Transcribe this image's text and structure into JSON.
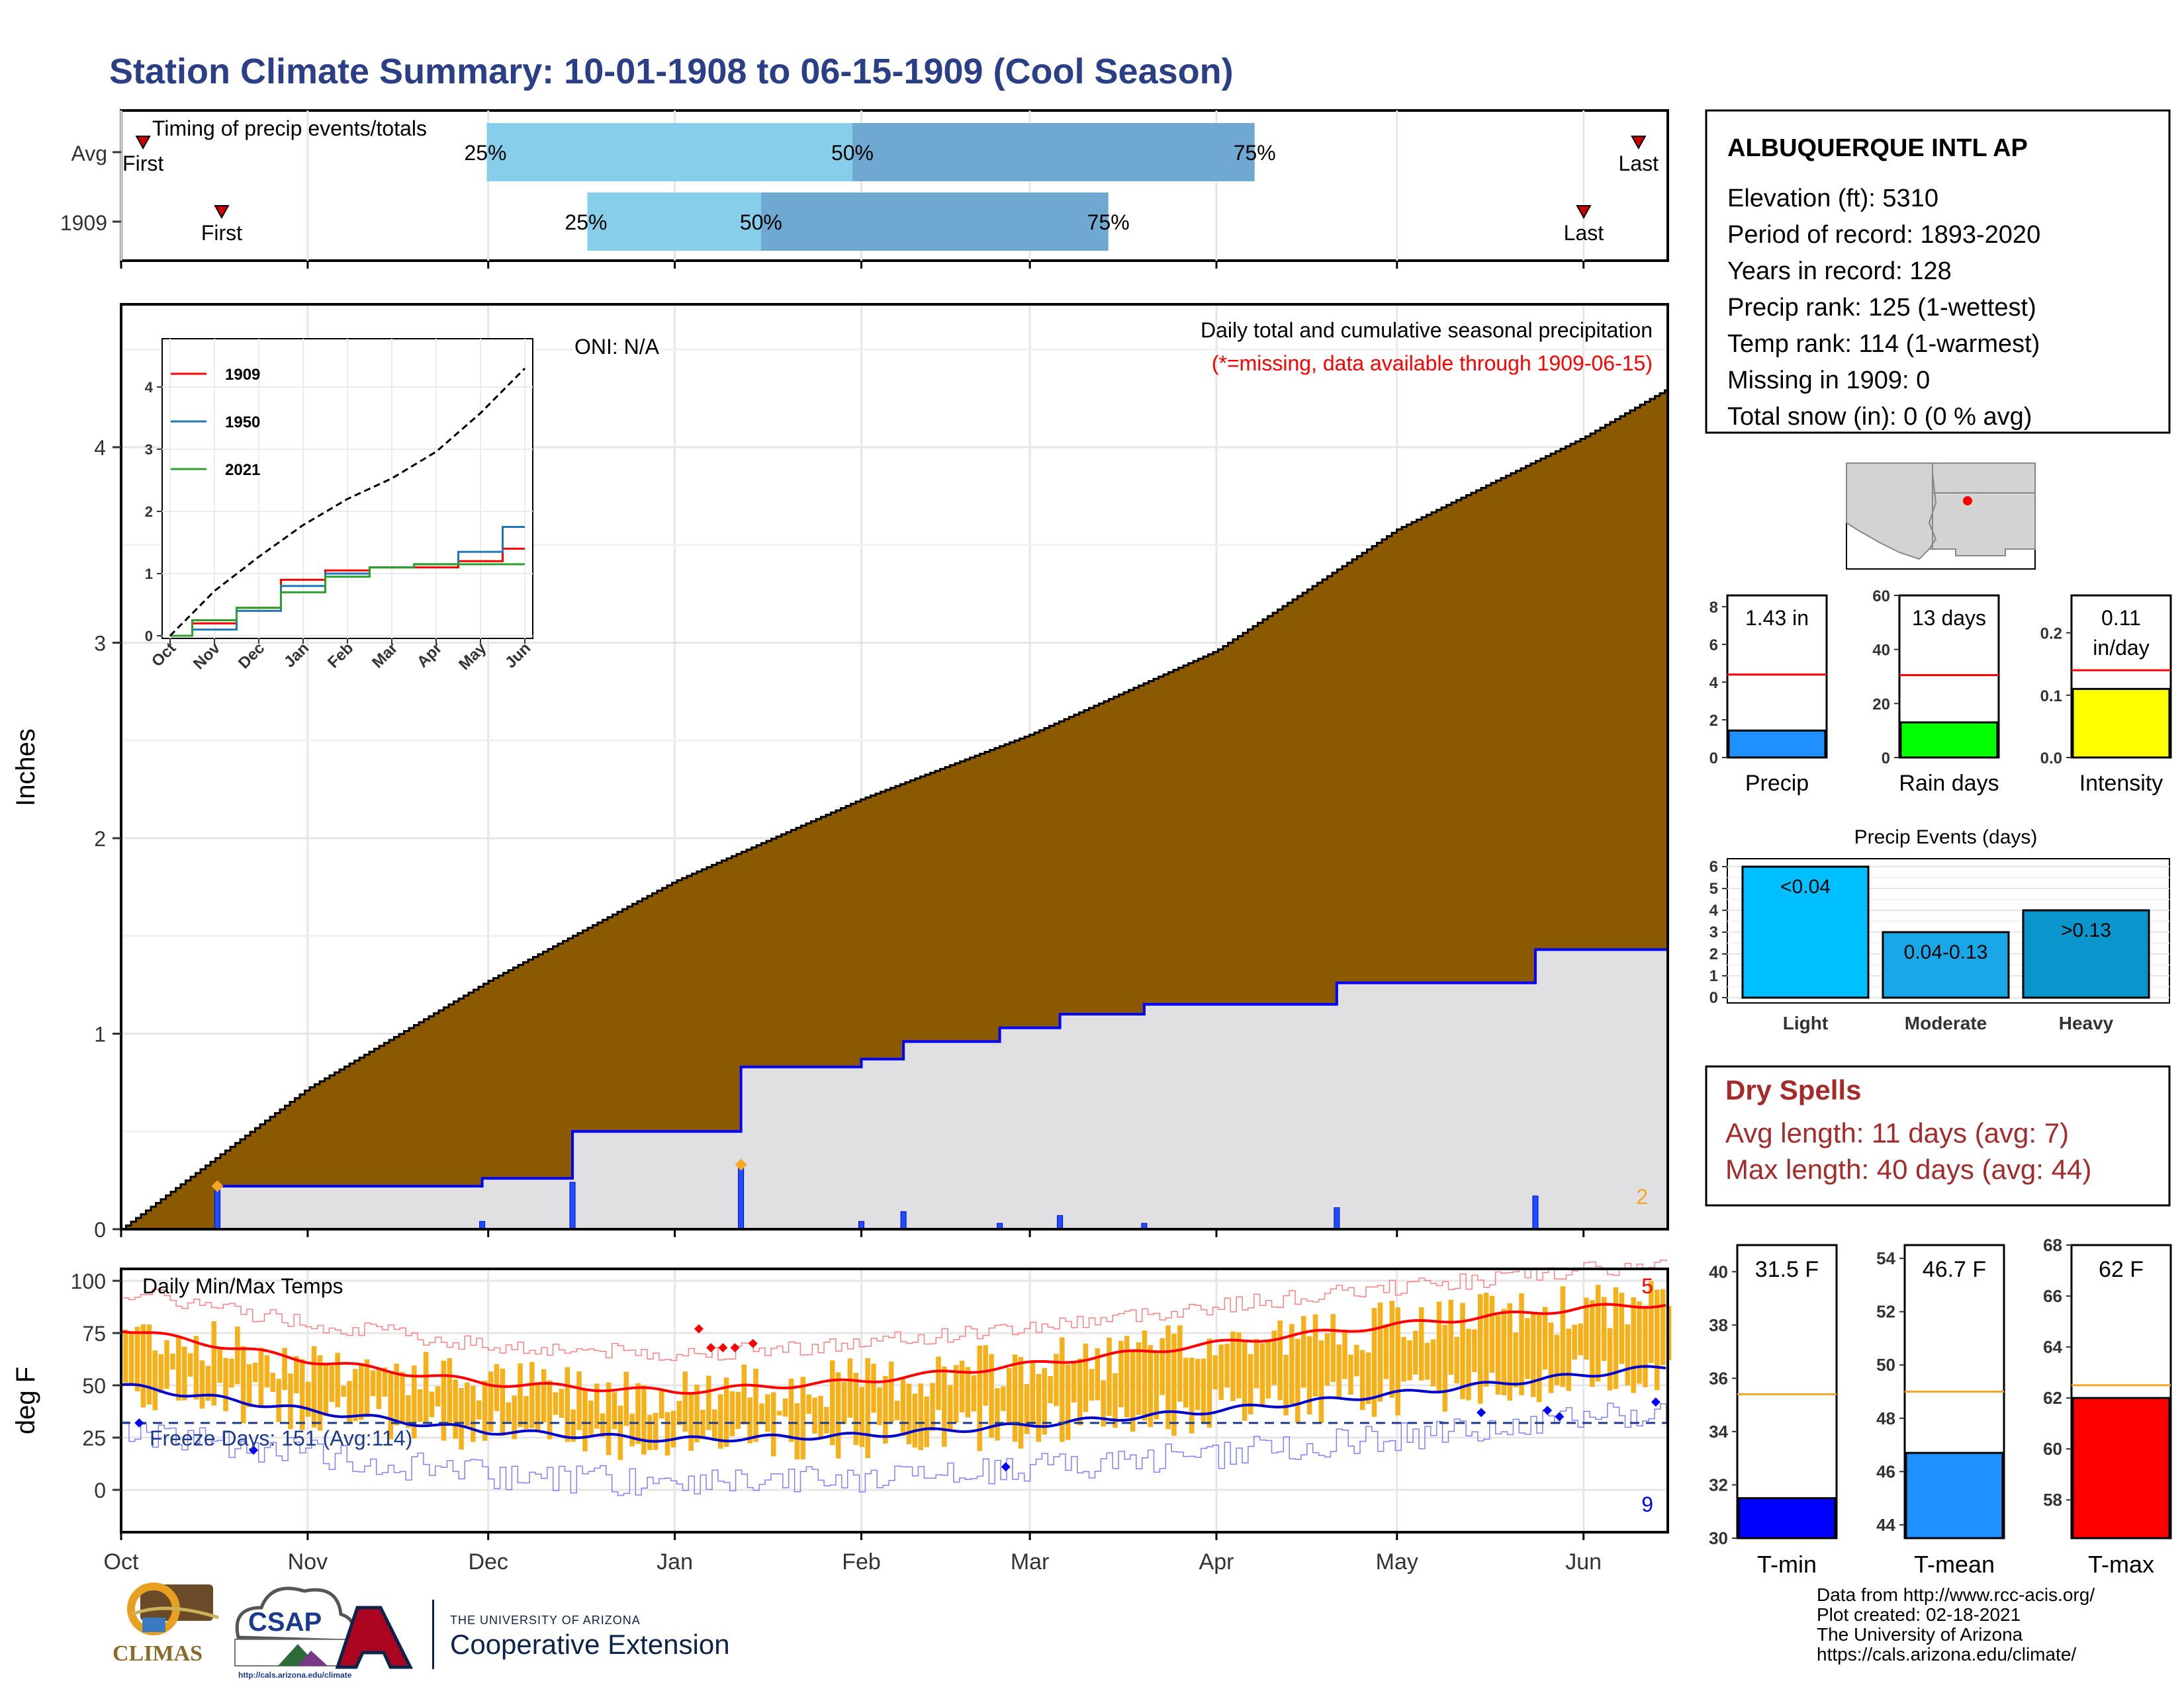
{
  "title": "Station Climate Summary: 10-01-1908 to 06-15-1909 (Cool Season)",
  "colors": {
    "title": "#2b3f87",
    "precip_fill": "#8b5a00",
    "obs_fill": "#e0e0e2",
    "obs_line": "#0000ff",
    "bar_light": "#87ceeb",
    "bar_dark": "#6fa8d0",
    "temp_bar": "#f5b01a",
    "tmax_line": "#ff0000",
    "tmin_line": "#0000ff",
    "dry_spells": "#a52a2a",
    "avg_line": "#ff0000",
    "temp_avg_line": "#f5a623"
  },
  "timing": {
    "label": "Timing of precip events/totals",
    "rows": [
      {
        "label": "Avg",
        "first_label": "First",
        "last_label": "Last",
        "first": 0.12,
        "last": 8.3,
        "p25": 2.0,
        "p50": 4.0,
        "p75": 6.2,
        "p25_label": "25%",
        "p50_label": "50%",
        "p75_label": "75%"
      },
      {
        "label": "1909",
        "first_label": "First",
        "last_label": "Last",
        "first": 0.55,
        "last": 8.0,
        "p25": 2.55,
        "p50": 3.5,
        "p75": 5.4,
        "p25_label": "25%",
        "p50_label": "50%",
        "p75_label": "75%"
      }
    ]
  },
  "precip_panel": {
    "oni": "ONI: N/A",
    "caption": "Daily total and cumulative seasonal precipitation",
    "missing_note": "(*=missing, data available through 1909-06-15)",
    "ylabel": "Inches",
    "yticks": [
      "0",
      "1",
      "2",
      "3",
      "4"
    ],
    "corner_count": "2"
  },
  "inset": {
    "legend": [
      "1909",
      "1950",
      "2021"
    ],
    "yticks": [
      "0",
      "1",
      "2",
      "3",
      "4"
    ],
    "xticks": [
      "Oct",
      "Nov",
      "Dec",
      "Jan",
      "Feb",
      "Mar",
      "Apr",
      "May",
      "Jun"
    ]
  },
  "temp_panel": {
    "label": "Daily Min/Max Temps",
    "freeze": "Freeze Days: 151 (Avg:114)",
    "ylabel": "deg F",
    "yticks": [
      "0",
      "25",
      "50",
      "75",
      "100"
    ],
    "count_top": "5",
    "count_bottom": "9"
  },
  "months": [
    "Oct",
    "Nov",
    "Dec",
    "Jan",
    "Feb",
    "Mar",
    "Apr",
    "May",
    "Jun"
  ],
  "station": {
    "name": "ALBUQUERQUE INTL AP",
    "lines": [
      "Elevation (ft): 5310",
      "Period of record: 1893-2020",
      "Years in record: 128",
      "Precip rank: 125 (1-wettest)",
      "Temp rank: 114 (1-warmest)",
      "Missing in 1909: 0",
      "Total snow (in): 0 (0 % avg)"
    ]
  },
  "mini_bars": [
    {
      "label": "Precip",
      "value_text": "1.43 in",
      "value": 1.43,
      "avg": 4.4,
      "ylim": [
        0,
        8.6
      ],
      "yticks": [
        "0",
        "2",
        "4",
        "6",
        "8"
      ],
      "color": "#1e90ff"
    },
    {
      "label": "Rain days",
      "value_text": "13 days",
      "value": 13,
      "avg": 30.5,
      "ylim": [
        0,
        60
      ],
      "yticks": [
        "0",
        "20",
        "40",
        "60"
      ],
      "color": "#00ff00"
    },
    {
      "label": "Intensity",
      "value_text": "0.11",
      "value_text2": "in/day",
      "value": 0.11,
      "avg": 0.14,
      "ylim": [
        0,
        0.26
      ],
      "yticks": [
        "0.0",
        "0.1",
        "0.2"
      ],
      "color": "#ffff00"
    }
  ],
  "events": {
    "title": "Precip Events (days)",
    "categories": [
      "Light",
      "Moderate",
      "Heavy"
    ],
    "labels": [
      "<0.04",
      "0.04-0.13",
      ">0.13"
    ],
    "values": [
      6,
      3,
      4
    ],
    "yticks": [
      "0",
      "1",
      "2",
      "3",
      "4",
      "5",
      "6"
    ],
    "colors": [
      "#00bfff",
      "#1aa7e8",
      "#0a96cc"
    ]
  },
  "dry_spells": {
    "title": "Dry Spells",
    "avg": "Avg length: 11 days (avg: 7)",
    "max": "Max length: 40 days (avg: 44)"
  },
  "temp_bars": [
    {
      "label": "T-min",
      "value_text": "31.5 F",
      "value": 31.5,
      "avg": 35.4,
      "ylim": [
        30,
        41
      ],
      "yticks": [
        "30",
        "32",
        "34",
        "36",
        "38",
        "40"
      ],
      "color": "#0000ff"
    },
    {
      "label": "T-mean",
      "value_text": "46.7 F",
      "value": 46.7,
      "avg": 49,
      "ylim": [
        43.5,
        54.5
      ],
      "yticks": [
        "44",
        "46",
        "48",
        "50",
        "52",
        "54"
      ],
      "color": "#1e90ff"
    },
    {
      "label": "T-max",
      "value_text": "62 F",
      "value": 62,
      "avg": 62.5,
      "ylim": [
        56.5,
        68
      ],
      "yticks": [
        "58",
        "60",
        "62",
        "64",
        "66",
        "68"
      ],
      "color": "#ff0000"
    }
  ],
  "footer": [
    "Data from http://www.rcc-acis.org/",
    "Plot created: 02-18-2021",
    "The University of Arizona",
    "https://cals.arizona.edu/climate/"
  ],
  "logos": {
    "climas": "CLIMAS",
    "csap": "CSAP",
    "csap_url": "http://cals.arizona.edu/climate",
    "ua_small": "THE UNIVERSITY OF ARIZONA",
    "ua_big": "Cooperative Extension"
  },
  "chart_data": [
    {
      "type": "area",
      "title": "Daily total and cumulative seasonal precipitation",
      "ylabel": "Inches",
      "x_range": [
        "1908-10-01",
        "1909-06-15"
      ],
      "ylim": [
        0,
        4.8
      ],
      "series": [
        {
          "name": "Avg",
          "x": [
            "1908-10-01",
            "1908-11-01",
            "1908-12-01",
            "1909-01-01",
            "1909-02-01",
            "1909-03-01",
            "1909-04-01",
            "1909-05-01",
            "1909-06-01",
            "1909-06-15"
          ],
          "values": [
            0,
            0.72,
            1.27,
            1.78,
            2.2,
            2.53,
            2.96,
            3.58,
            4.05,
            4.3
          ]
        },
        {
          "name": "1909",
          "x": [
            "1908-10-01",
            "1908-10-17",
            "1908-11-30",
            "1908-12-15",
            "1909-01-12",
            "1909-02-01",
            "1909-02-08",
            "1909-02-24",
            "1909-03-06",
            "1909-03-20",
            "1909-04-21",
            "1909-05-24",
            "1909-06-15"
          ],
          "values": [
            0,
            0.22,
            0.26,
            0.5,
            0.83,
            0.87,
            0.96,
            1.03,
            1.1,
            1.15,
            1.26,
            1.43,
            1.43
          ]
        }
      ],
      "daily_precip": {
        "x": [
          "1908-10-17",
          "1908-11-30",
          "1908-12-15",
          "1909-01-12",
          "1909-02-01",
          "1909-02-08",
          "1909-02-24",
          "1909-03-06",
          "1909-03-20",
          "1909-04-21",
          "1909-05-24"
        ],
        "values": [
          0.22,
          0.04,
          0.24,
          0.33,
          0.04,
          0.09,
          0.03,
          0.07,
          0.03,
          0.11,
          0.17
        ]
      }
    },
    {
      "type": "line",
      "title": "Daily Min/Max Temps",
      "ylabel": "deg F",
      "ylim": [
        -18,
        108
      ],
      "x_range": [
        "1908-10-01",
        "1909-06-15"
      ],
      "series": [
        {
          "name": "Avg Tmax",
          "x": [
            "1908-10-01",
            "1908-11-01",
            "1908-12-01",
            "1909-01-01",
            "1909-02-01",
            "1909-03-01",
            "1909-04-01",
            "1909-05-01",
            "1909-06-01",
            "1909-06-15"
          ],
          "values": [
            77,
            62,
            51,
            47,
            52,
            60,
            70,
            79,
            87,
            89
          ]
        },
        {
          "name": "Avg Tmin",
          "x": [
            "1908-10-01",
            "1908-11-01",
            "1908-12-01",
            "1909-01-01",
            "1909-02-01",
            "1909-03-01",
            "1909-04-01",
            "1909-05-01",
            "1909-06-01",
            "1909-06-15"
          ],
          "values": [
            50,
            38,
            28,
            24,
            26,
            31,
            38,
            46,
            55,
            59
          ]
        },
        {
          "name": "Freeze line",
          "x": [
            "1908-10-01",
            "1909-06-15"
          ],
          "values": [
            32,
            32
          ]
        }
      ]
    },
    {
      "type": "line",
      "title": "",
      "x": [
        "Oct",
        "Nov",
        "Dec",
        "Jan",
        "Feb",
        "Mar",
        "Apr",
        "May",
        "Jun"
      ],
      "ylim": [
        0,
        4.5
      ],
      "series": [
        {
          "name": "1909",
          "values": [
            0,
            0.2,
            0.45,
            0.9,
            1.05,
            1.1,
            1.1,
            1.2,
            1.4
          ]
        },
        {
          "name": "1950",
          "values": [
            0,
            0.1,
            0.4,
            0.8,
            1.0,
            1.1,
            1.15,
            1.35,
            1.75
          ]
        },
        {
          "name": "2021",
          "values": [
            0,
            0.25,
            0.45,
            0.7,
            0.95,
            1.1,
            1.15,
            1.15,
            1.15
          ]
        },
        {
          "name": "Avg",
          "values": [
            0,
            0.72,
            1.27,
            1.78,
            2.2,
            2.53,
            2.96,
            3.58,
            4.3
          ]
        }
      ]
    }
  ]
}
